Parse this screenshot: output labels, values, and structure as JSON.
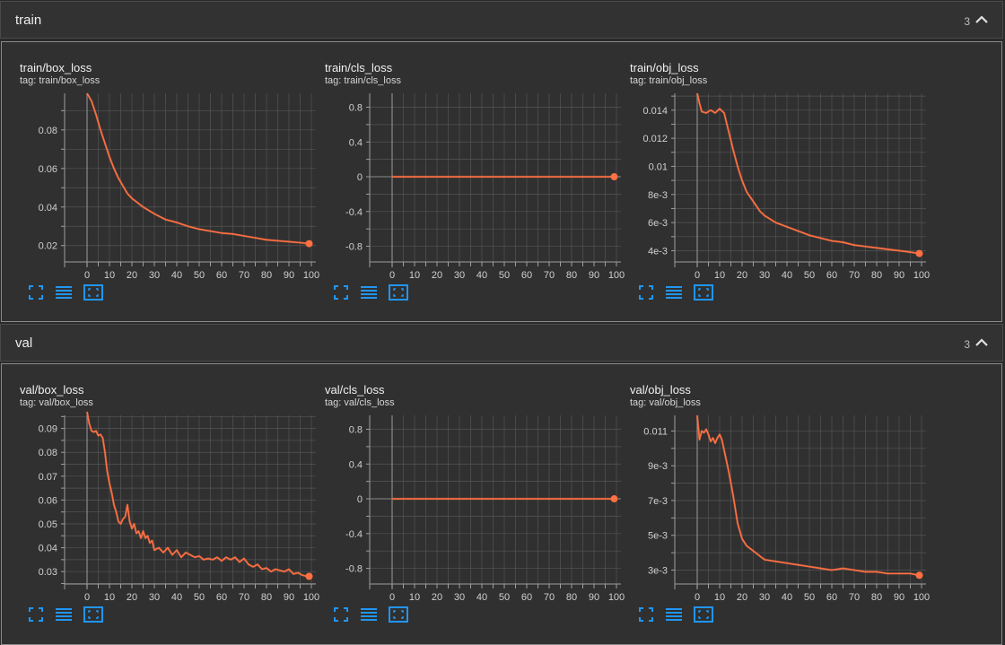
{
  "colors": {
    "line": "#ff7043",
    "grid": "#555555",
    "axis": "#9e9e9e",
    "text": "#d0d0d0"
  },
  "sections": [
    {
      "id": "train",
      "title": "train",
      "count": "3",
      "toggle_icon": "chevron-up-icon",
      "cards": [
        {
          "title": "train/box_loss",
          "tag": "tag: train/box_loss",
          "chart_data": {
            "type": "line",
            "xlim": [
              -10,
              102
            ],
            "ylim": [
              0.0115,
              0.099
            ],
            "xticks": [
              0,
              10,
              20,
              30,
              40,
              50,
              60,
              70,
              80,
              90,
              100
            ],
            "xtick_labels": [
              "0",
              "10",
              "20",
              "30",
              "40",
              "50",
              "60",
              "70",
              "80",
              "90",
              "100"
            ],
            "yticks": [
              0.02,
              0.04,
              0.06,
              0.08
            ],
            "ytick_labels": [
              "0.02",
              "0.04",
              "0.06",
              "0.08"
            ],
            "x": [
              0,
              2,
              4,
              6,
              8,
              10,
              12,
              14,
              16,
              18,
              20,
              25,
              30,
              35,
              40,
              45,
              50,
              55,
              60,
              65,
              70,
              75,
              80,
              85,
              90,
              95,
              99
            ],
            "y": [
              0.099,
              0.095,
              0.088,
              0.08,
              0.073,
              0.066,
              0.06,
              0.055,
              0.051,
              0.047,
              0.0445,
              0.04,
              0.0365,
              0.0335,
              0.032,
              0.03,
              0.0285,
              0.0275,
              0.0265,
              0.026,
              0.025,
              0.024,
              0.023,
              0.0225,
              0.022,
              0.0215,
              0.021
            ]
          }
        },
        {
          "title": "train/cls_loss",
          "tag": "tag: train/cls_loss",
          "chart_data": {
            "type": "line",
            "xlim": [
              -10,
              102
            ],
            "ylim": [
              -0.98,
              0.96
            ],
            "xticks": [
              0,
              10,
              20,
              30,
              40,
              50,
              60,
              70,
              80,
              90,
              100
            ],
            "xtick_labels": [
              "0",
              "10",
              "20",
              "30",
              "40",
              "50",
              "60",
              "70",
              "80",
              "90",
              "100"
            ],
            "yticks": [
              -0.8,
              -0.4,
              0,
              0.4,
              0.8
            ],
            "ytick_labels": [
              "-0.8",
              "-0.4",
              "0",
              "0.4",
              "0.8"
            ],
            "x": [
              0,
              99
            ],
            "y": [
              0,
              0
            ]
          }
        },
        {
          "title": "train/obj_loss",
          "tag": "tag: train/obj_loss",
          "chart_data": {
            "type": "line",
            "xlim": [
              -10,
              102
            ],
            "ylim": [
              0.0032,
              0.0152
            ],
            "xticks": [
              0,
              10,
              20,
              30,
              40,
              50,
              60,
              70,
              80,
              90,
              100
            ],
            "xtick_labels": [
              "0",
              "10",
              "20",
              "30",
              "40",
              "50",
              "60",
              "70",
              "80",
              "90",
              "100"
            ],
            "yticks": [
              0.004,
              0.006,
              0.008,
              0.01,
              0.012,
              0.014
            ],
            "ytick_labels": [
              "4e-3",
              "6e-3",
              "8e-3",
              "0.01",
              "0.012",
              "0.014"
            ],
            "x": [
              0,
              1,
              2,
              4,
              6,
              8,
              10,
              12,
              14,
              16,
              18,
              20,
              22,
              25,
              28,
              30,
              35,
              40,
              45,
              50,
              55,
              60,
              65,
              70,
              75,
              80,
              85,
              90,
              95,
              99
            ],
            "y": [
              0.0152,
              0.0145,
              0.0139,
              0.0138,
              0.014,
              0.0138,
              0.0141,
              0.0138,
              0.0125,
              0.0112,
              0.01,
              0.009,
              0.0082,
              0.0075,
              0.0068,
              0.0065,
              0.006,
              0.0057,
              0.0054,
              0.0051,
              0.0049,
              0.0047,
              0.0046,
              0.0044,
              0.0043,
              0.0042,
              0.0041,
              0.004,
              0.0039,
              0.0038
            ]
          }
        }
      ]
    },
    {
      "id": "val",
      "title": "val",
      "count": "3",
      "toggle_icon": "chevron-up-icon",
      "cards": [
        {
          "title": "val/box_loss",
          "tag": "tag: val/box_loss",
          "chart_data": {
            "type": "line",
            "xlim": [
              -10,
              102
            ],
            "ylim": [
              0.0248,
              0.0955
            ],
            "xticks": [
              0,
              10,
              20,
              30,
              40,
              50,
              60,
              70,
              80,
              90,
              100
            ],
            "xtick_labels": [
              "0",
              "10",
              "20",
              "30",
              "40",
              "50",
              "60",
              "70",
              "80",
              "90",
              "100"
            ],
            "yticks": [
              0.03,
              0.04,
              0.05,
              0.06,
              0.07,
              0.08,
              0.09
            ],
            "ytick_labels": [
              "0.03",
              "0.04",
              "0.05",
              "0.06",
              "0.07",
              "0.08",
              "0.09"
            ],
            "x": [
              0,
              1,
              2,
              3,
              4,
              5,
              6,
              7,
              8,
              9,
              10,
              11,
              12,
              13,
              14,
              15,
              16,
              17,
              18,
              19,
              20,
              21,
              22,
              23,
              24,
              25,
              26,
              27,
              28,
              29,
              30,
              32,
              34,
              36,
              38,
              40,
              42,
              44,
              46,
              48,
              50,
              52,
              54,
              56,
              58,
              60,
              62,
              64,
              66,
              68,
              70,
              72,
              74,
              76,
              78,
              80,
              82,
              84,
              86,
              88,
              90,
              92,
              94,
              96,
              98,
              99
            ],
            "y": [
              0.097,
              0.092,
              0.089,
              0.0885,
              0.089,
              0.087,
              0.0875,
              0.086,
              0.08,
              0.072,
              0.067,
              0.063,
              0.058,
              0.055,
              0.051,
              0.05,
              0.052,
              0.053,
              0.058,
              0.051,
              0.048,
              0.05,
              0.046,
              0.047,
              0.044,
              0.047,
              0.044,
              0.045,
              0.042,
              0.043,
              0.039,
              0.04,
              0.038,
              0.04,
              0.037,
              0.039,
              0.036,
              0.038,
              0.037,
              0.036,
              0.0365,
              0.035,
              0.0355,
              0.035,
              0.036,
              0.0345,
              0.036,
              0.035,
              0.036,
              0.034,
              0.0355,
              0.033,
              0.032,
              0.033,
              0.031,
              0.0315,
              0.03,
              0.031,
              0.0305,
              0.03,
              0.031,
              0.029,
              0.0295,
              0.0285,
              0.028,
              0.028
            ]
          }
        },
        {
          "title": "val/cls_loss",
          "tag": "tag: val/cls_loss",
          "chart_data": {
            "type": "line",
            "xlim": [
              -10,
              102
            ],
            "ylim": [
              -0.98,
              0.96
            ],
            "xticks": [
              0,
              10,
              20,
              30,
              40,
              50,
              60,
              70,
              80,
              90,
              100
            ],
            "xtick_labels": [
              "0",
              "10",
              "20",
              "30",
              "40",
              "50",
              "60",
              "70",
              "80",
              "90",
              "100"
            ],
            "yticks": [
              -0.8,
              -0.4,
              0,
              0.4,
              0.8
            ],
            "ytick_labels": [
              "-0.8",
              "-0.4",
              "0",
              "0.4",
              "0.8"
            ],
            "x": [
              0,
              99
            ],
            "y": [
              0,
              0
            ]
          }
        },
        {
          "title": "val/obj_loss",
          "tag": "tag: val/obj_loss",
          "chart_data": {
            "type": "line",
            "xlim": [
              -10,
              102
            ],
            "ylim": [
              0.0022,
              0.0119
            ],
            "xticks": [
              0,
              10,
              20,
              30,
              40,
              50,
              60,
              70,
              80,
              90,
              100
            ],
            "xtick_labels": [
              "0",
              "10",
              "20",
              "30",
              "40",
              "50",
              "60",
              "70",
              "80",
              "90",
              "100"
            ],
            "yticks": [
              0.003,
              0.005,
              0.007,
              0.009,
              0.011
            ],
            "ytick_labels": [
              "3e-3",
              "5e-3",
              "7e-3",
              "9e-3",
              "0.011"
            ],
            "x": [
              0,
              1,
              2,
              3,
              4,
              5,
              6,
              7,
              8,
              9,
              10,
              11,
              12,
              14,
              16,
              18,
              20,
              22,
              25,
              28,
              30,
              35,
              40,
              45,
              50,
              55,
              60,
              65,
              70,
              75,
              80,
              85,
              90,
              95,
              99
            ],
            "y": [
              0.0119,
              0.0105,
              0.011,
              0.0109,
              0.0111,
              0.0108,
              0.0104,
              0.0106,
              0.0103,
              0.0106,
              0.0108,
              0.0105,
              0.0099,
              0.0087,
              0.0073,
              0.0057,
              0.0048,
              0.0044,
              0.0041,
              0.0038,
              0.0036,
              0.0035,
              0.0034,
              0.0033,
              0.0032,
              0.0031,
              0.003,
              0.0031,
              0.003,
              0.0029,
              0.0029,
              0.0028,
              0.0028,
              0.0028,
              0.0027
            ]
          }
        }
      ]
    }
  ],
  "card_actions": [
    {
      "name": "toggle-fullscreen-button",
      "icon": "fullscreen-icon"
    },
    {
      "name": "toggle-log-scale-button",
      "icon": "lines-icon"
    },
    {
      "name": "fit-domain-button",
      "icon": "fit-domain-icon"
    }
  ]
}
